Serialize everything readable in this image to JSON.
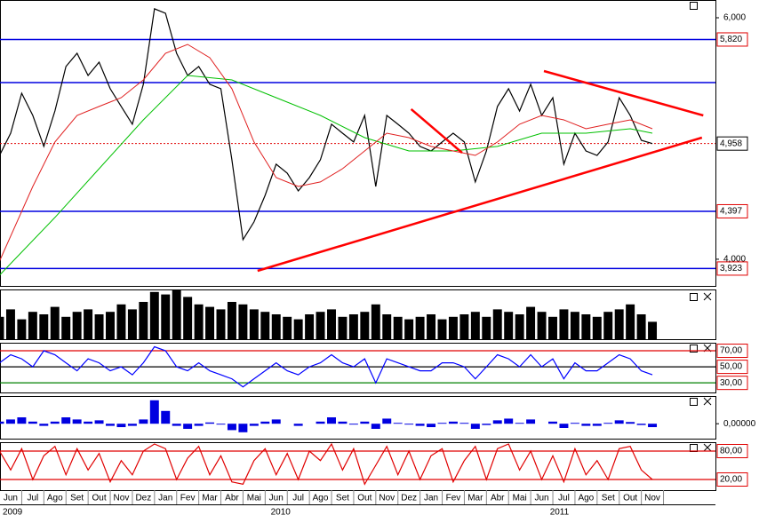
{
  "chart_data": [
    {
      "type": "line",
      "xlim": [
        -0.48,
        31.85
      ],
      "ylim": [
        3779,
        6147
      ],
      "yticks": [
        {
          "value": 6000,
          "label": "6,000"
        },
        {
          "value": 4000,
          "label": "4,000"
        }
      ],
      "xticks": [
        {
          "value": 0,
          "label": "Jun"
        },
        {
          "value": 1,
          "label": "Jul"
        },
        {
          "value": 2,
          "label": "Ago"
        },
        {
          "value": 3,
          "label": "Set"
        },
        {
          "value": 4,
          "label": "Out"
        },
        {
          "value": 5,
          "label": "Nov"
        },
        {
          "value": 6,
          "label": "Dez"
        },
        {
          "value": 7,
          "label": "Jan"
        },
        {
          "value": 8,
          "label": "Fev"
        },
        {
          "value": 9,
          "label": "Mar"
        },
        {
          "value": 10,
          "label": "Abr"
        },
        {
          "value": 11,
          "label": "Mai"
        },
        {
          "value": 12,
          "label": "Jun"
        },
        {
          "value": 13,
          "label": "Jul"
        },
        {
          "value": 14,
          "label": "Ago"
        },
        {
          "value": 15,
          "label": "Set"
        },
        {
          "value": 16,
          "label": "Out"
        },
        {
          "value": 17,
          "label": "Nov"
        },
        {
          "value": 18,
          "label": "Dez"
        },
        {
          "value": 19,
          "label": "Jan"
        },
        {
          "value": 20,
          "label": "Fev"
        },
        {
          "value": 21,
          "label": "Mar"
        },
        {
          "value": 22,
          "label": "Abr"
        },
        {
          "value": 23,
          "label": "Mai"
        },
        {
          "value": 24,
          "label": "Jun"
        },
        {
          "value": 25,
          "label": "Jul"
        },
        {
          "value": 26,
          "label": "Ago"
        },
        {
          "value": 27,
          "label": "Set"
        },
        {
          "value": 28,
          "label": "Out"
        },
        {
          "value": 29,
          "label": "Nov"
        }
      ],
      "years": [
        {
          "value": -0.48,
          "label": "2009"
        },
        {
          "value": 12.2,
          "label": "2010"
        },
        {
          "value": 24.8,
          "label": "2011"
        }
      ],
      "x": [
        -0.5,
        0,
        0.5,
        1,
        1.5,
        2,
        2.5,
        3,
        3.5,
        4,
        4.5,
        5,
        5.5,
        6,
        6.5,
        7,
        7.5,
        8,
        8.5,
        9,
        9.5,
        10,
        10.5,
        11,
        11.5,
        12,
        12.5,
        13,
        13.5,
        14,
        14.5,
        15,
        15.5,
        16,
        16.5,
        17,
        17.5,
        18,
        18.5,
        19,
        19.5,
        20,
        20.5,
        21,
        21.5,
        22,
        22.5,
        23,
        23.5,
        24,
        24.5,
        25,
        25.5,
        26,
        26.5,
        27,
        27.5,
        28,
        28.5,
        29
      ],
      "series": [
        {
          "color": "#000000",
          "values": [
            4860,
            5044,
            5375,
            5191,
            4934,
            5228,
            5596,
            5706,
            5522,
            5632,
            5412,
            5265,
            5118,
            5449,
            6074,
            6037,
            5706,
            5522,
            5596,
            5449,
            5412,
            4824,
            4162,
            4309,
            4529,
            4787,
            4713,
            4566,
            4676,
            4824,
            5118,
            5044,
            4971,
            5191,
            4603,
            5191,
            5118,
            5044,
            4934,
            4897,
            4971,
            5044,
            4971,
            4640,
            4897,
            5265,
            5412,
            5228,
            5449,
            5191,
            5338,
            4787,
            5044,
            4897,
            4860,
            4971,
            5338,
            5191,
            4985,
            4958
          ]
        },
        {
          "color": "#00c000",
          "x": [
            -0.5,
            2,
            4,
            6,
            8,
            10,
            12,
            14,
            16,
            18,
            20,
            22,
            24,
            26,
            28,
            29
          ],
          "values": [
            3868,
            4346,
            4750,
            5154,
            5522,
            5485,
            5338,
            5191,
            5007,
            4897,
            4897,
            4934,
            5044,
            5044,
            5081,
            5044
          ]
        },
        {
          "color": "#e02020",
          "x": [
            -0.5,
            1,
            2,
            3,
            4,
            5,
            6,
            7,
            8,
            9,
            10,
            11,
            12,
            13,
            14,
            15,
            16,
            17,
            18,
            19,
            20,
            21,
            22,
            23,
            24,
            25,
            26,
            27,
            28,
            29
          ],
          "values": [
            3985,
            4603,
            4971,
            5191,
            5265,
            5338,
            5485,
            5706,
            5779,
            5669,
            5412,
            4971,
            4676,
            4603,
            4640,
            4750,
            4897,
            5044,
            5007,
            4934,
            4897,
            4860,
            4971,
            5118,
            5191,
            5154,
            5081,
            5118,
            5154,
            5081
          ]
        }
      ],
      "levels": [
        {
          "value": 5820,
          "label": "5,820"
        },
        5463,
        {
          "value": 4397,
          "label": "4,397"
        },
        {
          "value": 3923,
          "label": "3,923"
        }
      ],
      "level_color": "#0000e0",
      "last": {
        "value": 4958,
        "label": "4,958"
      },
      "trend_color": "#ff0000",
      "trendlines": [
        {
          "x": [
            11.16,
            31.24
          ],
          "values": [
            3904,
            5007
          ]
        },
        {
          "x": [
            24.1,
            31.3
          ],
          "values": [
            5559,
            5191
          ]
        },
        {
          "x": [
            18.1,
            20.4
          ],
          "values": [
            5243,
            4882
          ]
        }
      ]
    },
    {
      "type": "bar",
      "color": "#000000",
      "ylim": [
        0,
        100
      ],
      "x": [
        -0.5,
        0,
        0.5,
        1,
        1.5,
        2,
        2.5,
        3,
        3.5,
        4,
        4.5,
        5,
        5.5,
        6,
        6.5,
        7,
        7.5,
        8,
        8.5,
        9,
        9.5,
        10,
        10.5,
        11,
        11.5,
        12,
        12.5,
        13,
        13.5,
        14,
        14.5,
        15,
        15.5,
        16,
        16.5,
        17,
        17.5,
        18,
        18.5,
        19,
        19.5,
        20,
        20.5,
        21,
        21.5,
        22,
        22.5,
        23,
        23.5,
        24,
        24.5,
        25,
        25.5,
        26,
        26.5,
        27,
        27.5,
        28,
        28.5,
        29
      ],
      "values": [
        45,
        60,
        40,
        55,
        50,
        65,
        45,
        55,
        60,
        50,
        55,
        70,
        60,
        75,
        95,
        90,
        100,
        85,
        70,
        65,
        60,
        75,
        70,
        60,
        55,
        50,
        45,
        40,
        50,
        55,
        60,
        45,
        50,
        55,
        70,
        50,
        45,
        40,
        45,
        50,
        40,
        45,
        50,
        55,
        45,
        60,
        55,
        50,
        65,
        55,
        45,
        60,
        55,
        50,
        45,
        55,
        60,
        70,
        50,
        35
      ]
    },
    {
      "type": "line",
      "ylim": [
        18,
        80
      ],
      "yticks": [
        {
          "value": 70,
          "label": "70,00"
        },
        {
          "value": 50,
          "label": "50,00"
        },
        {
          "value": 30,
          "label": "30,00"
        }
      ],
      "tick_colors": [
        "#e00000",
        "#000000",
        "#008000"
      ],
      "x": [
        -0.5,
        0,
        0.5,
        1,
        1.5,
        2,
        2.5,
        3,
        3.5,
        4,
        4.5,
        5,
        5.5,
        6,
        6.5,
        7,
        7.5,
        8,
        8.5,
        9,
        9.5,
        10,
        10.5,
        11,
        11.5,
        12,
        12.5,
        13,
        13.5,
        14,
        14.5,
        15,
        15.5,
        16,
        16.5,
        17,
        17.5,
        18,
        18.5,
        19,
        19.5,
        20,
        20.5,
        21,
        21.5,
        22,
        22.5,
        23,
        23.5,
        24,
        24.5,
        25,
        25.5,
        26,
        26.5,
        27,
        27.5,
        28,
        28.5,
        29
      ],
      "series": [
        {
          "color": "#0000ff",
          "values": [
            55,
            65,
            60,
            50,
            70,
            65,
            55,
            45,
            60,
            55,
            45,
            50,
            40,
            55,
            75,
            70,
            50,
            45,
            55,
            45,
            40,
            35,
            25,
            35,
            45,
            55,
            45,
            40,
            50,
            55,
            65,
            55,
            50,
            60,
            30,
            60,
            55,
            50,
            45,
            45,
            55,
            55,
            50,
            35,
            50,
            65,
            60,
            50,
            65,
            50,
            60,
            35,
            55,
            45,
            45,
            55,
            65,
            60,
            45,
            40
          ]
        }
      ]
    },
    {
      "type": "bar",
      "color": "#0000e0",
      "ylim": [
        -0.35,
        0.65
      ],
      "yticks": [
        {
          "value": 0,
          "label": "0,00000"
        }
      ],
      "x": [
        -0.5,
        0,
        0.5,
        1,
        1.5,
        2,
        2.5,
        3,
        3.5,
        4,
        4.5,
        5,
        5.5,
        6,
        6.5,
        7,
        7.5,
        8,
        8.5,
        9,
        9.5,
        10,
        10.5,
        11,
        11.5,
        12,
        12.5,
        13,
        13.5,
        14,
        14.5,
        15,
        15.5,
        16,
        16.5,
        17,
        17.5,
        18,
        18.5,
        19,
        19.5,
        20,
        20.5,
        21,
        21.5,
        22,
        22.5,
        23,
        23.5,
        24,
        24.5,
        25,
        25.5,
        26,
        26.5,
        27,
        27.5,
        28,
        28.5,
        29
      ],
      "values": [
        0.05,
        0.1,
        0.15,
        0.05,
        -0.05,
        0.05,
        0.15,
        0.1,
        0.05,
        0.08,
        -0.05,
        -0.08,
        -0.05,
        0.1,
        0.55,
        0.3,
        -0.05,
        -0.12,
        -0.05,
        0.03,
        -0.02,
        -0.15,
        -0.2,
        -0.05,
        0.05,
        0.1,
        0,
        -0.05,
        0,
        0.05,
        0.15,
        0.05,
        -0.02,
        0.05,
        -0.12,
        0.12,
        0.02,
        -0.02,
        -0.05,
        -0.08,
        0.02,
        0.05,
        0.02,
        -0.12,
        -0.03,
        0.08,
        0.12,
        0.02,
        0.1,
        0,
        0.05,
        -0.1,
        0.02,
        -0.05,
        -0.05,
        0.02,
        0.08,
        0.04,
        -0.03,
        -0.08
      ]
    },
    {
      "type": "line",
      "ylim": [
        -2.5,
        98.75
      ],
      "yticks": [
        {
          "value": 80,
          "label": "80,00"
        },
        {
          "value": 20,
          "label": "20,00"
        }
      ],
      "tick_colors": [
        "#e00000",
        "#e00000"
      ],
      "x": [
        -0.5,
        0,
        0.5,
        1,
        1.5,
        2,
        2.5,
        3,
        3.5,
        4,
        4.5,
        5,
        5.5,
        6,
        6.5,
        7,
        7.5,
        8,
        8.5,
        9,
        9.5,
        10,
        10.5,
        11,
        11.5,
        12,
        12.5,
        13,
        13.5,
        14,
        14.5,
        15,
        15.5,
        16,
        16.5,
        17,
        17.5,
        18,
        18.5,
        19,
        19.5,
        20,
        20.5,
        21,
        21.5,
        22,
        22.5,
        23,
        23.5,
        24,
        24.5,
        25,
        25.5,
        26,
        26.5,
        27,
        27.5,
        28,
        28.5,
        29
      ],
      "series": [
        {
          "color": "#e00000",
          "values": [
            80,
            40,
            85,
            20,
            70,
            90,
            30,
            85,
            40,
            75,
            15,
            60,
            30,
            80,
            95,
            85,
            20,
            65,
            90,
            30,
            70,
            15,
            10,
            60,
            85,
            30,
            75,
            20,
            80,
            60,
            95,
            40,
            85,
            10,
            50,
            90,
            30,
            80,
            20,
            70,
            85,
            15,
            60,
            90,
            20,
            85,
            95,
            40,
            80,
            20,
            70,
            15,
            85,
            30,
            60,
            20,
            85,
            90,
            40,
            20
          ]
        }
      ]
    }
  ]
}
